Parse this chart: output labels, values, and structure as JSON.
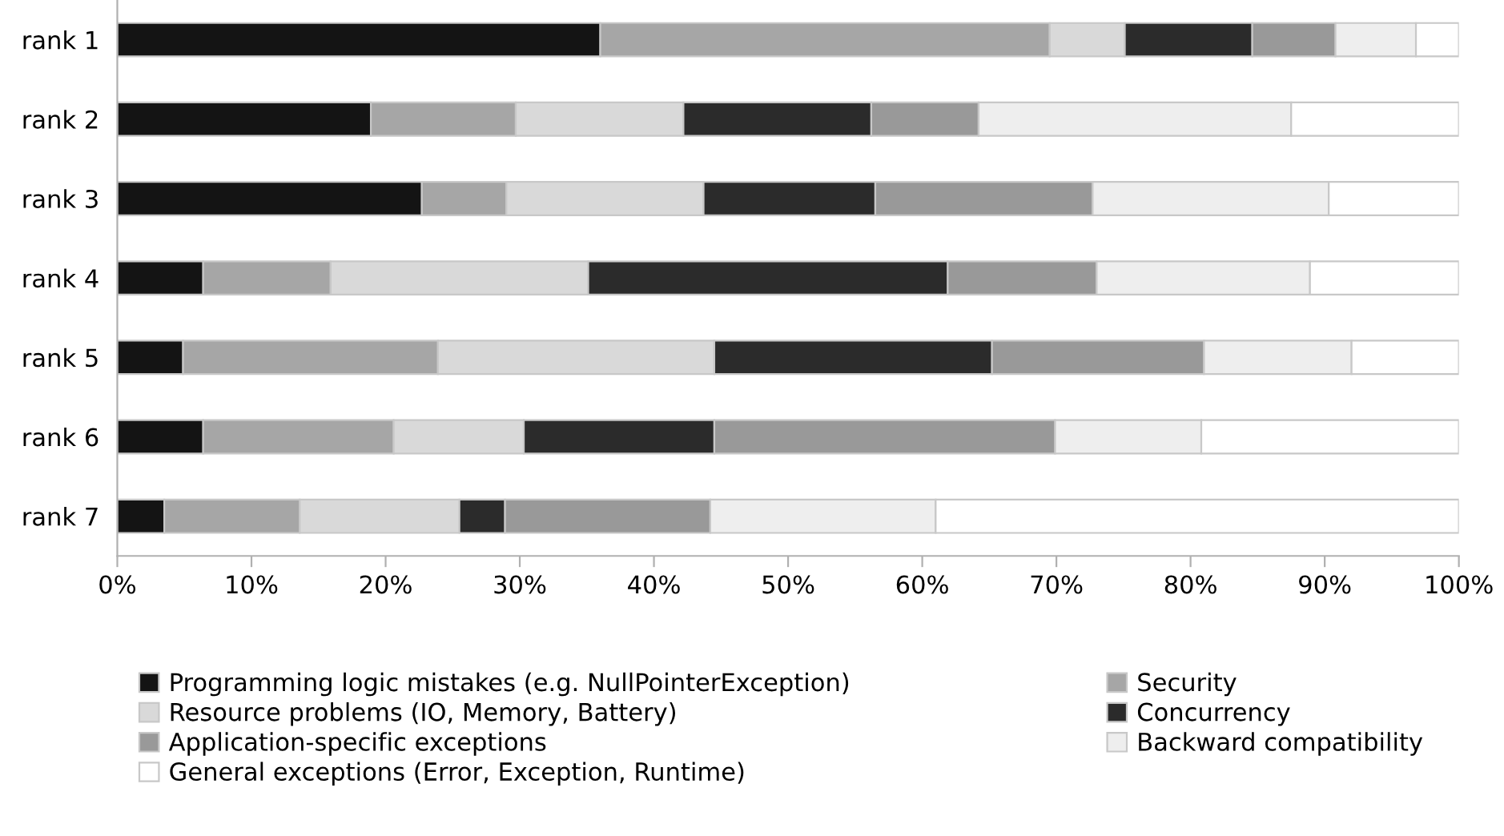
{
  "chart_data": {
    "type": "bar",
    "orientation": "horizontal",
    "stacked": true,
    "categories": [
      "rank 1",
      "rank 2",
      "rank 3",
      "rank 4",
      "rank 5",
      "rank 6",
      "rank 7"
    ],
    "series": [
      {
        "name": "Programming logic mistakes (e.g. NullPointerException)",
        "color": "#141414",
        "values": [
          36.0,
          18.9,
          22.7,
          6.4,
          4.9,
          6.4,
          3.5
        ]
      },
      {
        "name": "Security",
        "color": "#a6a6a6",
        "values": [
          33.5,
          10.8,
          6.3,
          9.5,
          19.0,
          14.2,
          10.1
        ]
      },
      {
        "name": "Resource problems (IO, Memory, Battery)",
        "color": "#d9d9d9",
        "values": [
          5.6,
          12.5,
          14.7,
          19.2,
          20.6,
          9.7,
          11.9
        ]
      },
      {
        "name": "Concurrency",
        "color": "#2b2b2b",
        "values": [
          9.5,
          14.0,
          12.8,
          26.8,
          20.7,
          14.2,
          3.4
        ]
      },
      {
        "name": "Application-specific exceptions",
        "color": "#999999",
        "values": [
          6.2,
          8.0,
          16.2,
          11.1,
          15.8,
          25.4,
          15.3
        ]
      },
      {
        "name": "Backward compatibility",
        "color": "#eeeeee",
        "values": [
          6.0,
          23.3,
          17.6,
          15.9,
          11.0,
          10.9,
          16.8
        ]
      },
      {
        "name": "General exceptions (Error, Exception, Runtime)",
        "color": "#ffffff",
        "values": [
          3.2,
          12.5,
          9.7,
          11.1,
          8.0,
          19.2,
          39.0
        ]
      }
    ],
    "xlim": [
      0,
      100
    ],
    "xticks": [
      {
        "value": 0,
        "label": "0%"
      },
      {
        "value": 10,
        "label": "10%"
      },
      {
        "value": 20,
        "label": "20%"
      },
      {
        "value": 30,
        "label": "30%"
      },
      {
        "value": 40,
        "label": "40%"
      },
      {
        "value": 50,
        "label": "50%"
      },
      {
        "value": 60,
        "label": "60%"
      },
      {
        "value": 70,
        "label": "70%"
      },
      {
        "value": 80,
        "label": "80%"
      },
      {
        "value": 90,
        "label": "90%"
      },
      {
        "value": 100,
        "label": "100%"
      }
    ],
    "legend": "bottom"
  }
}
